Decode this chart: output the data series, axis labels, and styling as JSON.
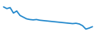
{
  "values": [
    100,
    95,
    98,
    82,
    88,
    75,
    70,
    65,
    63,
    62,
    63,
    61,
    60,
    59,
    58,
    57,
    56,
    55,
    54,
    53,
    52,
    51,
    52,
    50,
    45,
    35,
    38,
    42
  ],
  "line_color": "#2288cc",
  "linewidth": 1.2,
  "background_color": "#ffffff"
}
